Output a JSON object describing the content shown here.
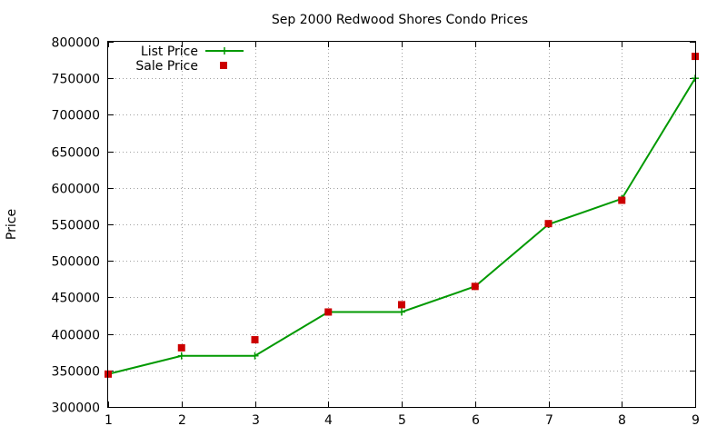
{
  "chart_data": {
    "type": "line",
    "title": "Sep 2000 Redwood Shores Condo Prices",
    "xlabel": "",
    "ylabel": "Price",
    "x": [
      1,
      2,
      3,
      4,
      5,
      6,
      7,
      8,
      9
    ],
    "xlim": [
      1,
      9
    ],
    "ylim": [
      300000,
      800000
    ],
    "xticks": [
      "1",
      "2",
      "3",
      "4",
      "5",
      "6",
      "7",
      "8",
      "9"
    ],
    "yticks": [
      "300000",
      "350000",
      "400000",
      "450000",
      "500000",
      "550000",
      "600000",
      "650000",
      "700000",
      "750000",
      "800000"
    ],
    "grid": true,
    "legend_position": "top-left",
    "series": [
      {
        "name": "List Price",
        "style": "lines+points",
        "marker": "plus",
        "color": "#009900",
        "values": [
          345000,
          370000,
          370000,
          430000,
          430000,
          465000,
          550000,
          585000,
          750000
        ]
      },
      {
        "name": "Sale Price",
        "style": "points",
        "marker": "square",
        "color": "#cc0000",
        "values": [
          345000,
          381000,
          392000,
          430000,
          440000,
          465000,
          551000,
          583000,
          780000
        ]
      }
    ]
  }
}
